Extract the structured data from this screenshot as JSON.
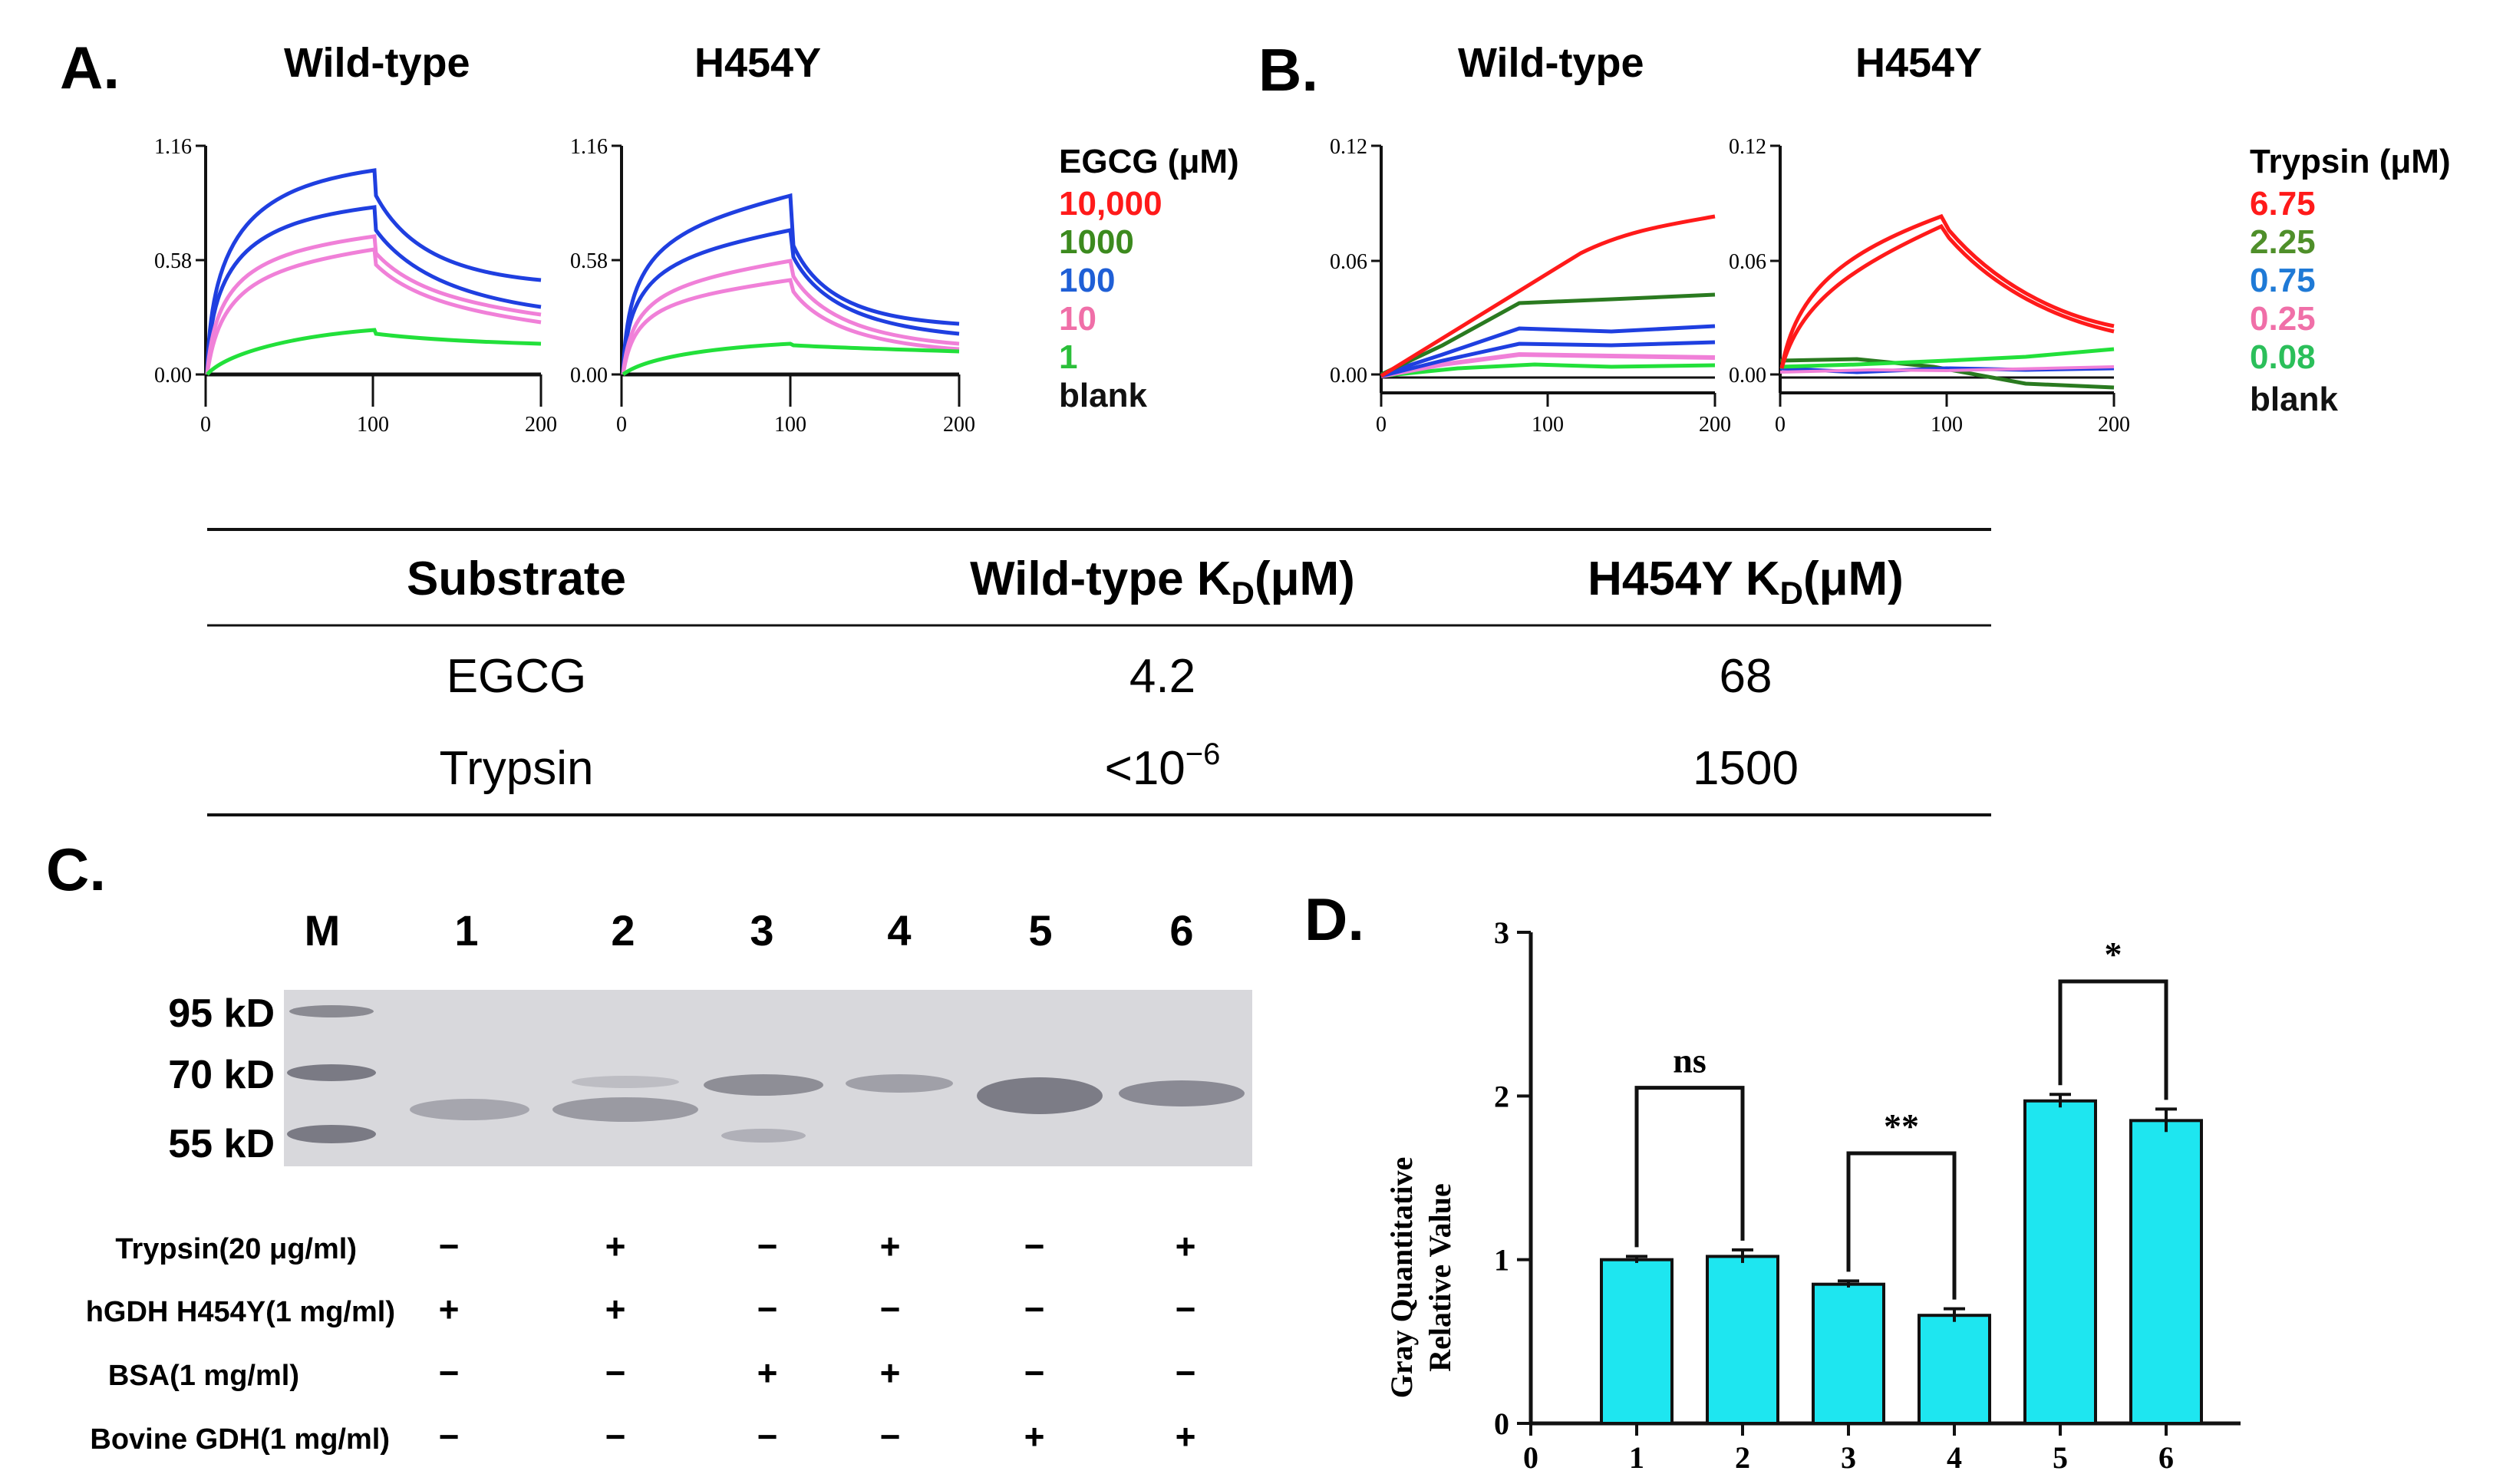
{
  "panelA": {
    "label": "A.",
    "title_wt": "Wild-type",
    "title_mut": "H454Y",
    "yticks": [
      "0.00",
      "0.58",
      "1.16"
    ],
    "xticks": [
      "0",
      "100",
      "200"
    ],
    "legend_title": "EGCG (μM)",
    "legend": [
      {
        "label": "10,000",
        "color": "#ff1a1a"
      },
      {
        "label": "1000",
        "color": "#3c8a1e"
      },
      {
        "label": "100",
        "color": "#1f5fd6"
      },
      {
        "label": "10",
        "color": "#f06fa8"
      },
      {
        "label": "1",
        "color": "#2bbf3a"
      },
      {
        "label": "blank",
        "color": "#111111"
      }
    ]
  },
  "panelB": {
    "label": "B.",
    "title_wt": "Wild-type",
    "title_mut": "H454Y",
    "yticks": [
      "0.00",
      "0.06",
      "0.12"
    ],
    "xticks": [
      "0",
      "100",
      "200"
    ],
    "legend_title": "Trypsin (μM)",
    "legend": [
      {
        "label": "6.75",
        "color": "#ff1a1a"
      },
      {
        "label": "2.25",
        "color": "#4f8f2a"
      },
      {
        "label": "0.75",
        "color": "#1f7ad6"
      },
      {
        "label": "0.25",
        "color": "#f06fa8"
      },
      {
        "label": "0.08",
        "color": "#2bbf5a"
      },
      {
        "label": "blank",
        "color": "#111111"
      }
    ]
  },
  "table": {
    "headers": [
      "Substrate",
      "Wild-type K",
      "H454Y K"
    ],
    "header_sub": "D",
    "header_unit": "(μM)",
    "rows": [
      [
        "EGCG",
        "4.2",
        "68"
      ],
      [
        "Trypsin",
        "<10",
        "1500"
      ]
    ],
    "exponent": "−6"
  },
  "panelC": {
    "label": "C.",
    "lanes": [
      "M",
      "1",
      "2",
      "3",
      "4",
      "5",
      "6"
    ],
    "markers": [
      "95 kD",
      "70 kD",
      "55 kD"
    ],
    "conditions": [
      {
        "label": "Trypsin(20 μg/ml)",
        "values": [
          "−",
          "+",
          "−",
          "+",
          "−",
          "+"
        ]
      },
      {
        "label": "hGDH H454Y(1 mg/ml)",
        "values": [
          "+",
          "+",
          "−",
          "−",
          "−",
          "−"
        ]
      },
      {
        "label": "BSA(1 mg/ml)",
        "values": [
          "−",
          "−",
          "+",
          "+",
          "−",
          "−"
        ]
      },
      {
        "label": "Bovine GDH(1 mg/ml)",
        "values": [
          "−",
          "−",
          "−",
          "−",
          "+",
          "+"
        ]
      }
    ]
  },
  "panelD": {
    "label": "D.",
    "ylabel_line1": "Gray Quantitative",
    "ylabel_line2": "Relative Value",
    "chart_data": {
      "type": "bar",
      "categories": [
        "1",
        "2",
        "3",
        "4",
        "5",
        "6"
      ],
      "values": [
        1.0,
        1.02,
        0.85,
        0.66,
        1.97,
        1.85
      ],
      "errors": [
        0.02,
        0.04,
        0.02,
        0.04,
        0.04,
        0.07
      ],
      "yticks": [
        "0",
        "1",
        "2",
        "3"
      ],
      "xticks": [
        "0",
        "1",
        "2",
        "3",
        "4",
        "5",
        "6"
      ],
      "ylim": [
        0,
        3
      ],
      "bar_color": "#1ee6f0",
      "significance": [
        {
          "pair": [
            1,
            2
          ],
          "label": "ns",
          "level": 2.05
        },
        {
          "pair": [
            3,
            4
          ],
          "label": "**",
          "level": 1.65
        },
        {
          "pair": [
            5,
            6
          ],
          "label": "*",
          "level": 2.7
        }
      ]
    }
  }
}
